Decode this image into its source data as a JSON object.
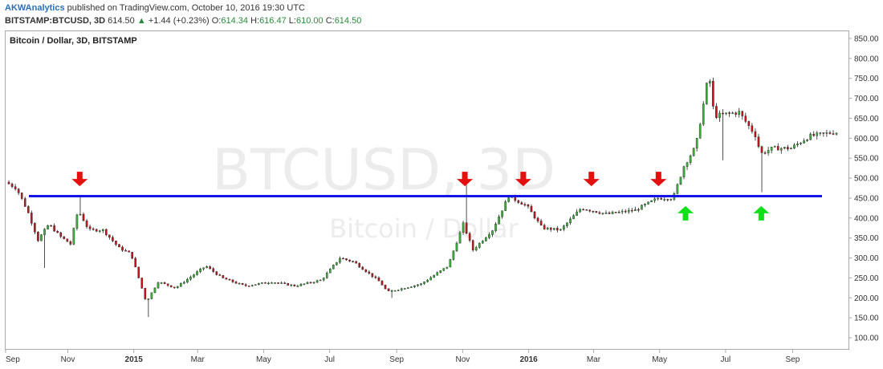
{
  "header": {
    "author": "AKWAnalytics",
    "published": " published on TradingView.com, October 10, 2016 19:30 UTC",
    "symbol": "BITSTAMP:BTCUSD, 3D",
    "last": "614.50",
    "change": "+1.44 (+0.23%)",
    "o_label": "O:",
    "o_value": "614.34",
    "h_label": "H:",
    "h_value": "616.47",
    "l_label": "L:",
    "l_value": "610.00",
    "c_label": "C:",
    "c_value": "614.50"
  },
  "chart_data": {
    "type": "candlestick",
    "title": "Bitcoin / Dollar, 3D, BITSTAMP",
    "watermark": "BTCUSD, 3D",
    "watermark_sub": "Bitcoin / Dollar",
    "x_range": [
      "2014-09-06",
      "2016-10-10"
    ],
    "ylim": [
      70,
      870
    ],
    "yticks": [
      100,
      150,
      200,
      250,
      300,
      350,
      400,
      450,
      500,
      550,
      600,
      650,
      700,
      750,
      800,
      850
    ],
    "ytick_labels": [
      "100.00",
      "150.00",
      "200.00",
      "250.00",
      "300.00",
      "350.00",
      "400.00",
      "450.00",
      "500.00",
      "550.00",
      "600.00",
      "650.00",
      "700.00",
      "750.00",
      "800.00",
      "850.00"
    ],
    "xticks": [
      {
        "label": "Sep",
        "date": "2014-09-01",
        "bold": false
      },
      {
        "label": "Nov",
        "date": "2014-11-01",
        "bold": false
      },
      {
        "label": "2015",
        "date": "2015-01-01",
        "bold": true
      },
      {
        "label": "Mar",
        "date": "2015-03-01",
        "bold": false
      },
      {
        "label": "May",
        "date": "2015-05-01",
        "bold": false
      },
      {
        "label": "Jul",
        "date": "2015-07-01",
        "bold": false
      },
      {
        "label": "Sep",
        "date": "2015-09-01",
        "bold": false
      },
      {
        "label": "Nov",
        "date": "2015-11-01",
        "bold": false
      },
      {
        "label": "2016",
        "date": "2016-01-01",
        "bold": true
      },
      {
        "label": "Mar",
        "date": "2016-03-01",
        "bold": false
      },
      {
        "label": "May",
        "date": "2016-05-01",
        "bold": false
      },
      {
        "label": "Jul",
        "date": "2016-07-01",
        "bold": false
      },
      {
        "label": "Sep",
        "date": "2016-09-01",
        "bold": false
      }
    ],
    "anchors": [
      {
        "date": "2014-09-06",
        "price": 490
      },
      {
        "date": "2014-09-16",
        "price": 475
      },
      {
        "date": "2014-09-26",
        "price": 420
      },
      {
        "date": "2014-10-06",
        "price": 345
      },
      {
        "date": "2014-10-16",
        "price": 385
      },
      {
        "date": "2014-10-26",
        "price": 355
      },
      {
        "date": "2014-11-05",
        "price": 335
      },
      {
        "date": "2014-11-12",
        "price": 420
      },
      {
        "date": "2014-11-22",
        "price": 370
      },
      {
        "date": "2014-12-05",
        "price": 370
      },
      {
        "date": "2014-12-20",
        "price": 325
      },
      {
        "date": "2014-12-31",
        "price": 310
      },
      {
        "date": "2015-01-14",
        "price": 190
      },
      {
        "date": "2015-01-25",
        "price": 240
      },
      {
        "date": "2015-02-10",
        "price": 225
      },
      {
        "date": "2015-03-10",
        "price": 280
      },
      {
        "date": "2015-03-25",
        "price": 250
      },
      {
        "date": "2015-04-15",
        "price": 230
      },
      {
        "date": "2015-05-10",
        "price": 240
      },
      {
        "date": "2015-06-01",
        "price": 230
      },
      {
        "date": "2015-06-25",
        "price": 245
      },
      {
        "date": "2015-07-12",
        "price": 300
      },
      {
        "date": "2015-07-25",
        "price": 290
      },
      {
        "date": "2015-08-18",
        "price": 240
      },
      {
        "date": "2015-08-25",
        "price": 215
      },
      {
        "date": "2015-09-25",
        "price": 235
      },
      {
        "date": "2015-10-20",
        "price": 280
      },
      {
        "date": "2015-11-03",
        "price": 385
      },
      {
        "date": "2015-11-12",
        "price": 320
      },
      {
        "date": "2015-11-30",
        "price": 370
      },
      {
        "date": "2015-12-15",
        "price": 455
      },
      {
        "date": "2016-01-01",
        "price": 430
      },
      {
        "date": "2016-01-15",
        "price": 375
      },
      {
        "date": "2016-02-01",
        "price": 370
      },
      {
        "date": "2016-02-20",
        "price": 425
      },
      {
        "date": "2016-03-15",
        "price": 410
      },
      {
        "date": "2016-04-10",
        "price": 420
      },
      {
        "date": "2016-05-01",
        "price": 450
      },
      {
        "date": "2016-05-15",
        "price": 450
      },
      {
        "date": "2016-05-25",
        "price": 530
      },
      {
        "date": "2016-06-05",
        "price": 580
      },
      {
        "date": "2016-06-13",
        "price": 700
      },
      {
        "date": "2016-06-17",
        "price": 765
      },
      {
        "date": "2016-06-22",
        "price": 655
      },
      {
        "date": "2016-07-01",
        "price": 660
      },
      {
        "date": "2016-07-15",
        "price": 665
      },
      {
        "date": "2016-08-01",
        "price": 600
      },
      {
        "date": "2016-08-03",
        "price": 560
      },
      {
        "date": "2016-08-15",
        "price": 575
      },
      {
        "date": "2016-09-01",
        "price": 575
      },
      {
        "date": "2016-09-18",
        "price": 605
      },
      {
        "date": "2016-10-10",
        "price": 614.5
      }
    ],
    "support_resistance_level": 455,
    "support_line_color": "#1414e8",
    "up_color": "#3bb33b",
    "down_color": "#c8141e",
    "arrows_down": [
      {
        "date": "2014-11-12",
        "price": 500
      },
      {
        "date": "2015-11-03",
        "price": 500
      },
      {
        "date": "2015-12-27",
        "price": 500
      },
      {
        "date": "2016-02-28",
        "price": 500
      },
      {
        "date": "2016-04-30",
        "price": 500
      }
    ],
    "arrows_up": [
      {
        "date": "2016-05-25",
        "price": 410
      },
      {
        "date": "2016-08-03",
        "price": 410
      }
    ],
    "arrow_down_color": "#e31010",
    "arrow_up_color": "#11e018"
  }
}
